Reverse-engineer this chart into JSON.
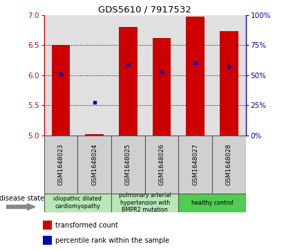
{
  "title": "GDS5610 / 7917532",
  "samples": [
    "GSM1648023",
    "GSM1648024",
    "GSM1648025",
    "GSM1648026",
    "GSM1648027",
    "GSM1648028"
  ],
  "red_values": [
    6.5,
    5.02,
    6.8,
    6.62,
    6.98,
    6.73
  ],
  "blue_values": [
    6.02,
    5.55,
    6.18,
    6.06,
    6.21,
    6.15
  ],
  "y_min": 5.0,
  "y_max": 7.0,
  "y_ticks": [
    5,
    5.5,
    6,
    6.5,
    7
  ],
  "y2_ticks": [
    0,
    25,
    50,
    75,
    100
  ],
  "group_ranges": [
    [
      -0.5,
      1.5
    ],
    [
      1.5,
      3.5
    ],
    [
      3.5,
      5.5
    ]
  ],
  "group_colors": [
    "#b8e8b8",
    "#b8e8b8",
    "#50cc50"
  ],
  "group_labels": [
    "idiopathic dilated\ncardiomyopathy",
    "pulmonary arterial\nhypertension with\nBMPR2 mutation",
    "healthy control"
  ],
  "disease_state_label": "disease state",
  "legend_red": "transformed count",
  "legend_blue": "percentile rank within the sample",
  "bar_color": "#cc0000",
  "dot_color": "#0000bb",
  "plot_bg_color": "#e0e0e0"
}
